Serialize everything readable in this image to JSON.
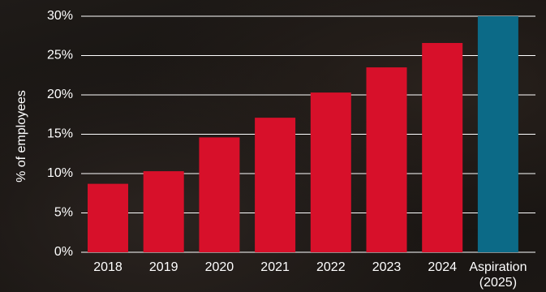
{
  "chart_data": {
    "type": "bar",
    "title": "",
    "xlabel": "",
    "ylabel": "% of employees",
    "ylim": [
      0,
      30
    ],
    "yticks": [
      0,
      5,
      10,
      15,
      20,
      25,
      30
    ],
    "ytick_labels": [
      "0%",
      "5%",
      "10%",
      "15%",
      "20%",
      "25%",
      "30%"
    ],
    "grid": true,
    "categories": [
      "2018",
      "2019",
      "2020",
      "2021",
      "2022",
      "2023",
      "2024",
      "Aspiration (2025)"
    ],
    "category_label_lines": [
      [
        "2018"
      ],
      [
        "2019"
      ],
      [
        "2020"
      ],
      [
        "2021"
      ],
      [
        "2022"
      ],
      [
        "2023"
      ],
      [
        "2024"
      ],
      [
        "Aspiration",
        "(2025)"
      ]
    ],
    "values": [
      8.7,
      10.3,
      14.6,
      17.1,
      20.3,
      23.5,
      26.6,
      30
    ],
    "colors": [
      "#d7102a",
      "#d7102a",
      "#d7102a",
      "#d7102a",
      "#d7102a",
      "#d7102a",
      "#d7102a",
      "#0c6a87"
    ]
  }
}
